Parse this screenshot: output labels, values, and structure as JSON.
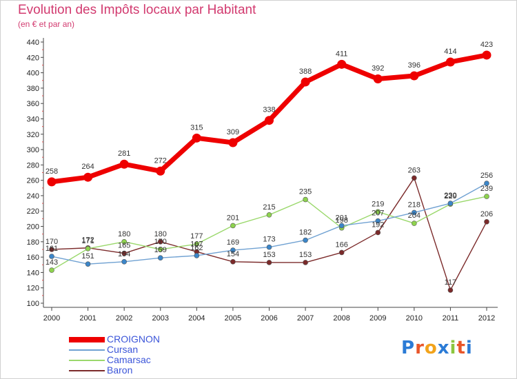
{
  "title": "Evolution des Impôts locaux par Habitant",
  "subtitle": "(en € et par an)",
  "logo": {
    "text": "Proxiti",
    "letters": [
      "P",
      "r",
      "o",
      "x",
      "i",
      "t",
      "i"
    ],
    "colors": [
      "#2b7bd6",
      "#e8562a",
      "#f2a31b",
      "#2b7bd6",
      "#8cc63f",
      "#e8562a",
      "#2b7bd6"
    ]
  },
  "chart_data": {
    "type": "line",
    "x": [
      "2000",
      "2001",
      "2002",
      "2003",
      "2004",
      "2005",
      "2006",
      "2007",
      "2008",
      "2009",
      "2010",
      "2011",
      "2012"
    ],
    "ylim": [
      100,
      440
    ],
    "yticks": [
      "100",
      "120",
      "140",
      "160",
      "180",
      "200",
      "220",
      "240",
      "260",
      "280",
      "300",
      "320",
      "340",
      "360",
      "380",
      "400",
      "420",
      "440"
    ],
    "grid": false,
    "legend_position": "bottom-left",
    "series": [
      {
        "name": "CROIGNON",
        "color": "#ee0000",
        "values": [
          258,
          264,
          281,
          272,
          315,
          309,
          338,
          388,
          411,
          392,
          396,
          414,
          423
        ],
        "labels": [
          "258",
          "264",
          "281",
          "272",
          "315",
          "309",
          "338",
          "388",
          "411",
          "392",
          "396",
          "414",
          "423"
        ]
      },
      {
        "name": "Cursan",
        "color": "#6fa1d2",
        "marker": "#3b86c9",
        "values": [
          161,
          151,
          154,
          159,
          162,
          169,
          173,
          182,
          201,
          207,
          218,
          230,
          256
        ],
        "labels": [
          "161",
          "151",
          "154",
          "159",
          "162",
          "169",
          "173",
          "182",
          "201",
          "207",
          "218",
          "230",
          "256"
        ]
      },
      {
        "name": "Camarsac",
        "color": "#9ad86b",
        "marker": "#8ed34e",
        "values": [
          143,
          171,
          180,
          170,
          177,
          201,
          215,
          235,
          198,
          219,
          204,
          229,
          239
        ],
        "labels": [
          "143",
          "171",
          "180",
          "170",
          "177",
          "201",
          "215",
          "235",
          "198",
          "219",
          "204",
          "229",
          "239"
        ]
      },
      {
        "name": "Baron",
        "color": "#7b2a2a",
        "marker": "#7b2a2a",
        "values": [
          170,
          172,
          165,
          180,
          167,
          154,
          153,
          153,
          166,
          192,
          263,
          117,
          206
        ],
        "labels": [
          "170",
          "172",
          "165",
          "180",
          "167",
          "154",
          "153",
          "153",
          "166",
          "192",
          "263",
          "117",
          "206"
        ]
      }
    ]
  }
}
